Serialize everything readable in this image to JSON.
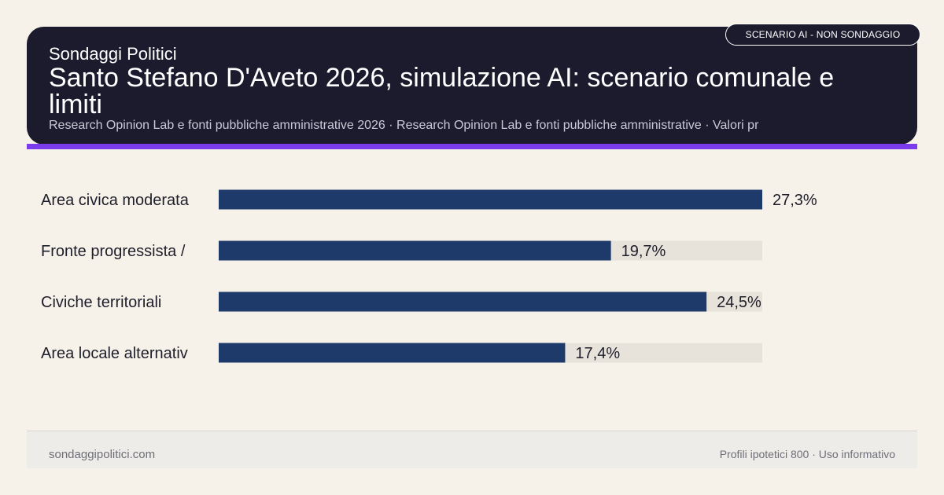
{
  "header": {
    "brand": "Sondaggi Politici",
    "title": "Santo Stefano D'Aveto 2026, simulazione AI: scenario comunale e limiti",
    "subtitle": "Research Opinion Lab e fonti pubbliche amministrative 2026 · Research Opinion Lab e fonti pubbliche amministrative · Valori pr",
    "badge": "SCENARIO AI - NON SONDAGGIO"
  },
  "colors": {
    "header_bg": "#1c1b2e",
    "accent": "#7c3aed",
    "bar": "#1e3a6b",
    "track": "#e7e2da",
    "background": "#f6f2ea"
  },
  "chart_data": {
    "type": "bar",
    "orientation": "horizontal",
    "categories": [
      "Area civica moderata",
      "Fronte progressista /",
      "Civiche territoriali",
      "Area locale alternativ"
    ],
    "values": [
      27.3,
      19.7,
      24.5,
      17.4
    ],
    "value_labels": [
      "27,3%",
      "19,7%",
      "24,5%",
      "17,4%"
    ],
    "xlim": [
      0,
      27.3
    ],
    "grid": false
  },
  "footer": {
    "site": "sondaggipolitici.com",
    "note": "Profili ipotetici 800 · Uso informativo"
  }
}
